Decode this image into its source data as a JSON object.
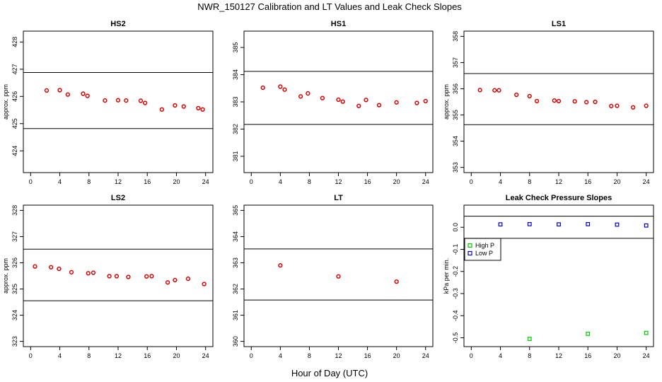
{
  "figure": {
    "title": "NWR_150127  Calibration and LT Values and Leak Check Slopes",
    "xlabel": "Hour of Day (UTC)"
  },
  "chart_data": [
    {
      "type": "scatter",
      "title": "HS2",
      "ylabel": "approx. ppm",
      "xlim": [
        -1,
        25
      ],
      "ylim": [
        423.2,
        428.4
      ],
      "xticks": [
        0,
        4,
        8,
        12,
        16,
        20,
        24
      ],
      "yticks": [
        424,
        425,
        426,
        427,
        428
      ],
      "hlines": [
        426.88,
        424.82
      ],
      "series": [
        {
          "name": "HS2",
          "color": "#dd0000",
          "marker": "circle",
          "x": [
            2.2,
            4.0,
            5.1,
            7.2,
            7.8,
            10.2,
            12.0,
            13.1,
            15.1,
            15.7,
            18.0,
            19.8,
            21.0,
            23.0,
            23.6
          ],
          "y": [
            426.22,
            426.23,
            426.07,
            426.1,
            426.02,
            425.85,
            425.86,
            425.85,
            425.84,
            425.76,
            425.52,
            425.67,
            425.63,
            425.57,
            425.52
          ]
        }
      ]
    },
    {
      "type": "scatter",
      "title": "HS1",
      "ylabel": "",
      "xlim": [
        -1,
        25
      ],
      "ylim": [
        380.4,
        385.6
      ],
      "xticks": [
        0,
        4,
        8,
        12,
        16,
        20,
        24
      ],
      "yticks": [
        381,
        382,
        383,
        384,
        385
      ],
      "hlines": [
        384.12,
        382.17
      ],
      "series": [
        {
          "name": "HS1",
          "color": "#dd0000",
          "marker": "circle",
          "x": [
            1.6,
            4.0,
            4.6,
            6.8,
            7.8,
            9.8,
            12.0,
            12.6,
            14.8,
            15.8,
            17.6,
            20.0,
            22.8,
            24.0
          ],
          "y": [
            383.52,
            383.56,
            383.45,
            383.2,
            383.31,
            383.14,
            383.08,
            383.01,
            382.85,
            383.07,
            382.88,
            382.98,
            382.96,
            383.03
          ]
        }
      ]
    },
    {
      "type": "scatter",
      "title": "LS1",
      "ylabel": "approx. ppm",
      "xlim": [
        -1,
        25
      ],
      "ylim": [
        352.8,
        358.2
      ],
      "xticks": [
        0,
        4,
        8,
        12,
        16,
        20,
        24
      ],
      "yticks": [
        353,
        354,
        355,
        356,
        357,
        358
      ],
      "hlines": [
        356.58,
        354.63
      ],
      "series": [
        {
          "name": "LS1",
          "color": "#dd0000",
          "marker": "circle",
          "x": [
            1.2,
            3.2,
            3.8,
            6.2,
            8.0,
            9.0,
            11.4,
            12.0,
            14.2,
            15.8,
            17.0,
            19.2,
            20.0,
            22.2,
            24.0
          ],
          "y": [
            355.95,
            355.94,
            355.94,
            355.77,
            355.72,
            355.53,
            355.55,
            355.53,
            355.52,
            355.49,
            355.5,
            355.34,
            355.35,
            355.29,
            355.35
          ]
        }
      ]
    },
    {
      "type": "scatter",
      "title": "LS2",
      "ylabel": "approx. ppm",
      "xlim": [
        -1,
        25
      ],
      "ylim": [
        322.8,
        328.2
      ],
      "xticks": [
        0,
        4,
        8,
        12,
        16,
        20,
        24
      ],
      "yticks": [
        323,
        324,
        325,
        326,
        327,
        328
      ],
      "hlines": [
        326.52,
        324.55
      ],
      "series": [
        {
          "name": "LS2",
          "color": "#dd0000",
          "marker": "circle",
          "x": [
            0.6,
            2.8,
            3.9,
            5.6,
            7.9,
            8.6,
            10.8,
            11.8,
            13.4,
            15.9,
            16.6,
            18.8,
            19.8,
            21.6,
            23.8
          ],
          "y": [
            325.86,
            325.83,
            325.77,
            325.64,
            325.6,
            325.62,
            325.49,
            325.49,
            325.46,
            325.48,
            325.49,
            325.25,
            325.34,
            325.39,
            325.19
          ]
        }
      ]
    },
    {
      "type": "scatter",
      "title": "LT",
      "ylabel": "",
      "xlim": [
        -1,
        25
      ],
      "ylim": [
        359.8,
        365.2
      ],
      "xticks": [
        0,
        4,
        8,
        12,
        16,
        20,
        24
      ],
      "yticks": [
        360,
        361,
        362,
        363,
        364,
        365
      ],
      "hlines": [
        363.53,
        361.58
      ],
      "series": [
        {
          "name": "LT",
          "color": "#dd0000",
          "marker": "circle",
          "x": [
            4.0,
            12.0,
            20.0
          ],
          "y": [
            362.9,
            362.48,
            362.28
          ]
        }
      ]
    },
    {
      "type": "scatter",
      "title": "Leak Check Pressure Slopes",
      "ylabel": "kPa per min.",
      "xlim": [
        -1,
        25
      ],
      "ylim": [
        -0.54,
        0.1
      ],
      "xticks": [
        0,
        4,
        8,
        12,
        16,
        20,
        24
      ],
      "yticks": [
        0.0,
        -0.1,
        -0.2,
        -0.3,
        -0.4,
        -0.5
      ],
      "ytick_labels": [
        "0.0",
        "-0.1",
        "-0.2",
        "-0.3",
        "-0.4",
        "-0.5"
      ],
      "hlines": [
        0.05,
        -0.05
      ],
      "legend": {
        "position": "top-left",
        "entries": [
          "High P",
          "Low P"
        ]
      },
      "series": [
        {
          "name": "High P",
          "color": "#00cc00",
          "marker": "square",
          "x": [
            8.0,
            16.0,
            24.0
          ],
          "y": [
            -0.505,
            -0.482,
            -0.478
          ]
        },
        {
          "name": "Low P",
          "color": "#0000cc",
          "marker": "square",
          "x": [
            4.0,
            8.0,
            12.0,
            16.0,
            20.0,
            24.0
          ],
          "y": [
            0.013,
            0.014,
            0.013,
            0.014,
            0.012,
            0.008
          ]
        }
      ]
    }
  ]
}
